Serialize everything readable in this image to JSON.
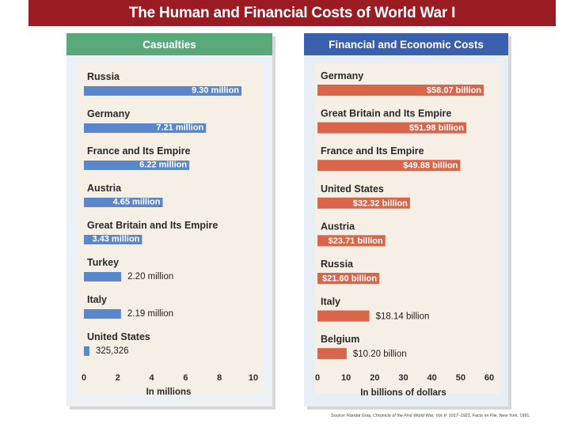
{
  "title": "The Human and Financial Costs of World War I",
  "source_prefix": "Source: Randal Gray, ",
  "source_italic": "Chronicle of the First World War, Vol. II: 1917–1921",
  "source_suffix": ", Facts on File, New York, 1991.",
  "colors": {
    "title_bg": "#9b1b22",
    "casualties_header": "#5aa97b",
    "financial_header": "#3a60ad",
    "casualty_bar": "#5b86c9",
    "financial_bar": "#d9654a"
  },
  "chart_data": [
    {
      "type": "bar",
      "orientation": "horizontal",
      "title": "Casualties",
      "xlabel": "In millions",
      "xlim": [
        0,
        10
      ],
      "ticks": [
        0,
        2,
        4,
        6,
        8,
        10
      ],
      "categories": [
        "Russia",
        "Germany",
        "France and Its Empire",
        "Austria",
        "Great Britain and Its Empire",
        "Turkey",
        "Italy",
        "United States"
      ],
      "values": [
        9.3,
        7.21,
        6.22,
        4.65,
        3.43,
        2.2,
        2.19,
        0.325326
      ],
      "labels": [
        "9.30 million",
        "7.21 million",
        "6.22 million",
        "4.65 million",
        "3.43 million",
        "2.20 million",
        "2.19 million",
        "325,326"
      ],
      "label_inside": [
        true,
        true,
        true,
        true,
        true,
        false,
        false,
        false
      ]
    },
    {
      "type": "bar",
      "orientation": "horizontal",
      "title": "Financial and Economic Costs",
      "xlabel": "In billions of dollars",
      "xlim": [
        0,
        60
      ],
      "ticks": [
        0,
        10,
        20,
        30,
        40,
        50,
        60
      ],
      "categories": [
        "Germany",
        "Great Britain and Its Empire",
        "France and Its Empire",
        "United States",
        "Austria",
        "Russia",
        "Italy",
        "Belgium"
      ],
      "values": [
        58.07,
        51.98,
        49.88,
        32.32,
        23.71,
        21.6,
        18.14,
        10.2
      ],
      "labels": [
        "$58.07 billion",
        "$51.98 billion",
        "$49.88 billion",
        "$32.32 billion",
        "$23.71 billion",
        "$21.60 billion",
        "$18.14 billion",
        "$10.20 billion"
      ],
      "label_inside": [
        true,
        true,
        true,
        true,
        true,
        true,
        false,
        false
      ]
    }
  ]
}
